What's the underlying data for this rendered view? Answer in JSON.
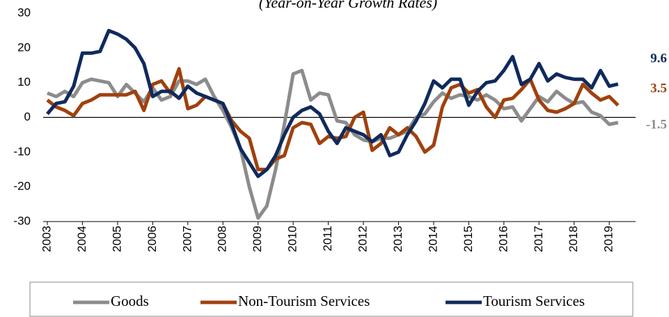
{
  "chart_data": {
    "type": "line",
    "title": "(Year-on-Year Growth Rates)",
    "x": [
      2003,
      2003.25,
      2003.5,
      2003.75,
      2004,
      2004.25,
      2004.5,
      2004.75,
      2005,
      2005.25,
      2005.5,
      2005.75,
      2006,
      2006.25,
      2006.5,
      2006.75,
      2007,
      2007.25,
      2007.5,
      2007.75,
      2008,
      2008.25,
      2008.5,
      2008.75,
      2009,
      2009.25,
      2009.5,
      2009.75,
      2010,
      2010.25,
      2010.5,
      2010.75,
      2011,
      2011.25,
      2011.5,
      2011.75,
      2012,
      2012.25,
      2012.5,
      2012.75,
      2013,
      2013.25,
      2013.5,
      2013.75,
      2014,
      2014.25,
      2014.5,
      2014.75,
      2015,
      2015.25,
      2015.5,
      2015.75,
      2016,
      2016.25,
      2016.5,
      2016.75,
      2017,
      2017.25,
      2017.5,
      2017.75,
      2018,
      2018.25,
      2018.5,
      2018.75,
      2019,
      2019.25
    ],
    "series": [
      {
        "name": "Goods",
        "color": "#8c8c8c",
        "values": [
          7,
          6,
          7.5,
          6,
          10,
          11,
          10.5,
          10,
          6,
          9.5,
          7,
          4.5,
          8.5,
          5,
          6,
          10.5,
          10.5,
          9.5,
          11,
          6,
          2,
          -3,
          -9,
          -20,
          -29,
          -25.5,
          -15,
          -2,
          12.5,
          13.5,
          5,
          7,
          6.5,
          -1,
          -1.5,
          -5,
          -6.5,
          -7,
          -6,
          -6,
          -5,
          -4,
          0,
          1,
          4.5,
          7,
          5.5,
          6.5,
          6,
          5,
          6.5,
          5,
          2.5,
          3,
          -1,
          2.5,
          6,
          4.5,
          7.5,
          5.5,
          4,
          4.5,
          1.5,
          0.5,
          -2,
          -1.5
        ]
      },
      {
        "name": "Non-Tourism Services",
        "color": "#a0410d",
        "values": [
          5,
          3,
          2,
          0.5,
          4,
          5,
          6.5,
          6.5,
          6.5,
          6.5,
          7.5,
          2,
          9.5,
          10.5,
          7,
          14,
          2.5,
          3.5,
          6,
          5,
          4,
          -1,
          -4,
          -6,
          -15,
          -15,
          -12,
          -11,
          -3,
          -1.5,
          -2,
          -7.5,
          -5.5,
          -6,
          -5.5,
          0,
          1.5,
          -9.5,
          -7.5,
          -3,
          -5,
          -3,
          -5.5,
          -10,
          -8,
          3,
          8.5,
          9.5,
          7,
          8,
          3,
          0,
          5,
          5.5,
          8,
          11,
          5,
          2,
          1.5,
          2.5,
          4,
          9.5,
          7,
          5,
          6,
          3.5
        ]
      },
      {
        "name": "Tourism Services",
        "color": "#0f2a5c",
        "values": [
          1,
          4,
          4.5,
          9,
          18.5,
          18.5,
          19,
          25,
          24,
          22.5,
          20,
          15.5,
          6,
          7.5,
          7.5,
          5.5,
          9,
          7,
          6,
          5,
          4,
          -2,
          -9,
          -13,
          -17,
          -15,
          -11,
          -5,
          0,
          2,
          3,
          1,
          -4,
          -7.5,
          -3,
          -4,
          -5,
          -7,
          -5,
          -11,
          -10,
          -5,
          -1,
          4,
          10.5,
          8.5,
          11,
          11,
          3.5,
          7.5,
          10,
          10.5,
          13.5,
          17.5,
          9.5,
          11,
          15.5,
          10.5,
          12.5,
          11.5,
          11,
          11,
          8.5,
          13.5,
          9,
          9.6
        ]
      }
    ],
    "annotations": [
      {
        "text": "9.6",
        "value": 9.6,
        "color": "#0f2a5c"
      },
      {
        "text": "3.5",
        "value": 3.5,
        "color": "#a0410d"
      },
      {
        "text": "-1.5",
        "value": -1.5,
        "color": "#8c8c8c"
      }
    ],
    "xlim": [
      2003,
      2019.75
    ],
    "xticks": [
      2003,
      2004,
      2005,
      2006,
      2007,
      2008,
      2009,
      2010,
      2011,
      2012,
      2013,
      2014,
      2015,
      2016,
      2017,
      2018,
      2019
    ],
    "ylim": [
      -30,
      30
    ],
    "yticks": [
      -30,
      -20,
      -10,
      0,
      10,
      20,
      30
    ],
    "legend": "bottom"
  }
}
